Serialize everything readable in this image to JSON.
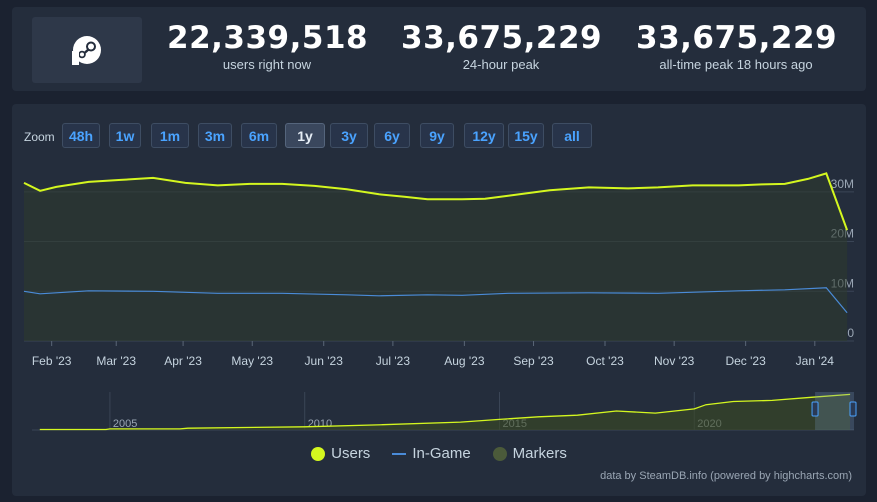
{
  "stats": [
    {
      "value": "22,339,518",
      "label": "users right now"
    },
    {
      "value": "33,675,229",
      "label": "24-hour peak"
    },
    {
      "value": "33,675,229",
      "label": "all-time peak 18 hours ago"
    }
  ],
  "zoom": {
    "label": "Zoom",
    "options": [
      "48h",
      "1w",
      "1m",
      "3m",
      "6m",
      "1y",
      "3y",
      "6y",
      "9y",
      "12y",
      "15y",
      "all"
    ],
    "active": "1y"
  },
  "legend": {
    "users": "Users",
    "ingame": "In-Game",
    "markers": "Markers"
  },
  "credit": "data by SteamDB.info (powered by highcharts.com)",
  "colors": {
    "users": "#d4f71f",
    "ingame": "#4a8bd8",
    "markers": "#4b5a3a",
    "accent": "#4aa3ff"
  },
  "chart_data": {
    "type": "line",
    "y_ticks": [
      "0",
      "10M",
      "20M",
      "30M"
    ],
    "ylim": [
      0,
      36000000
    ],
    "x_ticks": [
      "Feb '23",
      "Mar '23",
      "Apr '23",
      "May '23",
      "Jun '23",
      "Jul '23",
      "Aug '23",
      "Sep '23",
      "Oct '23",
      "Nov '23",
      "Dec '23",
      "Jan '24"
    ],
    "x_tick_pos": [
      12,
      40,
      69,
      99,
      130,
      160,
      191,
      221,
      252,
      282,
      313,
      343
    ],
    "xlim": [
      0,
      360
    ],
    "series": [
      {
        "name": "Users",
        "x": [
          0,
          7,
          14,
          28,
          42,
          56,
          70,
          84,
          98,
          112,
          126,
          140,
          154,
          165,
          175,
          190,
          200,
          210,
          228,
          245,
          262,
          275,
          290,
          310,
          320,
          330,
          340,
          348,
          357
        ],
        "values": [
          31.8,
          30.2,
          31.0,
          32.0,
          32.4,
          32.8,
          31.8,
          31.3,
          31.6,
          31.6,
          31.2,
          30.5,
          29.5,
          29.0,
          28.5,
          28.5,
          28.6,
          29.2,
          30.3,
          30.9,
          30.7,
          30.9,
          31.3,
          31.3,
          31.5,
          31.6,
          32.6,
          33.7,
          22.3
        ]
      },
      {
        "name": "In-Game",
        "x": [
          0,
          7,
          28,
          56,
          84,
          112,
          140,
          154,
          175,
          190,
          210,
          245,
          275,
          310,
          330,
          348,
          357
        ],
        "values": [
          10.0,
          9.5,
          10.1,
          10.0,
          9.6,
          9.6,
          9.3,
          9.1,
          9.3,
          9.2,
          9.6,
          9.7,
          9.6,
          10.1,
          10.3,
          10.7,
          5.7
        ]
      }
    ],
    "navigator": {
      "labels": [
        "2005",
        "2010",
        "2015",
        "2020"
      ],
      "label_years": [
        2005,
        2010,
        2015,
        2020
      ],
      "year_range": [
        2003,
        2024.1
      ],
      "x": [
        2003.2,
        2004.9,
        2005.0,
        2006.8,
        2007.0,
        2010.0,
        2012.0,
        2014.0,
        2015.0,
        2016.0,
        2017.0,
        2018.0,
        2019.0,
        2020.0,
        2020.3,
        2021.0,
        2022.0,
        2023.0,
        2024.0
      ],
      "values": [
        0.5,
        0.5,
        1.0,
        1.0,
        1.7,
        3.0,
        5.0,
        7.5,
        10.0,
        12.5,
        14.0,
        18.0,
        16.0,
        20.0,
        24.0,
        27.0,
        28.0,
        31.0,
        33.7
      ]
    }
  }
}
